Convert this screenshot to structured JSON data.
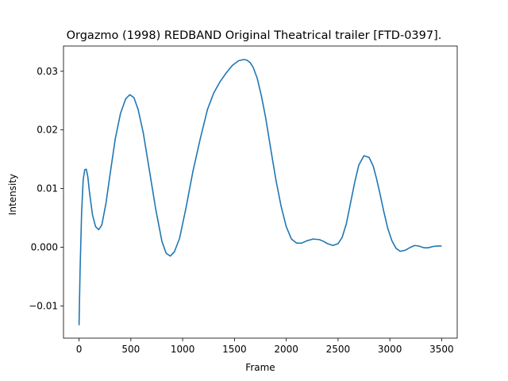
{
  "chart_data": {
    "type": "line",
    "title": "Orgazmo (1998) REDBAND Original Theatrical trailer [FTD-0397].",
    "xlabel": "Frame",
    "ylabel": "Intensity",
    "xlim": [
      -150,
      3650
    ],
    "ylim": [
      -0.0155,
      0.0343
    ],
    "xticks": [
      0,
      500,
      1000,
      1500,
      2000,
      2500,
      3000,
      3500
    ],
    "yticks": [
      -0.01,
      0.0,
      0.01,
      0.02,
      0.03
    ],
    "ytick_labels": [
      "−0.01",
      "0.000",
      "0.01",
      "0.02",
      "0.03"
    ],
    "xtick_labels": [
      "0",
      "500",
      "1000",
      "1500",
      "2000",
      "2500",
      "3000",
      "3500"
    ],
    "grid": false,
    "line_color": "#1f77b4",
    "series": [
      {
        "x": [
          0,
          10,
          25,
          40,
          55,
          70,
          85,
          100,
          130,
          160,
          190,
          220,
          260,
          300,
          350,
          400,
          450,
          490,
          530,
          570,
          620,
          680,
          740,
          800,
          840,
          880,
          920,
          970,
          1030,
          1100,
          1170,
          1240,
          1300,
          1360,
          1420,
          1480,
          1540,
          1590,
          1620,
          1650,
          1680,
          1720,
          1760,
          1800,
          1850,
          1900,
          1950,
          2000,
          2050,
          2100,
          2150,
          2200,
          2260,
          2320,
          2360,
          2400,
          2450,
          2500,
          2540,
          2580,
          2620,
          2660,
          2700,
          2750,
          2800,
          2840,
          2870,
          2900,
          2940,
          2980,
          3020,
          3060,
          3100,
          3150,
          3200,
          3240,
          3280,
          3330,
          3370,
          3410,
          3450,
          3500
        ],
        "values": [
          -0.0133,
          -0.004,
          0.006,
          0.0115,
          0.0132,
          0.0133,
          0.012,
          0.0095,
          0.0055,
          0.0035,
          0.003,
          0.0038,
          0.0075,
          0.0125,
          0.0185,
          0.0228,
          0.0253,
          0.026,
          0.0255,
          0.0235,
          0.0195,
          0.013,
          0.0065,
          0.001,
          -0.001,
          -0.0015,
          -0.0008,
          0.0015,
          0.0065,
          0.013,
          0.0185,
          0.0235,
          0.0263,
          0.0282,
          0.0297,
          0.031,
          0.0318,
          0.032,
          0.0319,
          0.0315,
          0.0307,
          0.0288,
          0.0258,
          0.0222,
          0.0168,
          0.0115,
          0.007,
          0.0035,
          0.0014,
          0.0007,
          0.0007,
          0.0011,
          0.0014,
          0.0013,
          0.001,
          0.0006,
          0.0003,
          0.0006,
          0.0017,
          0.004,
          0.0075,
          0.011,
          0.014,
          0.0156,
          0.0153,
          0.0138,
          0.0118,
          0.0095,
          0.0062,
          0.0032,
          0.0011,
          -0.0002,
          -0.0007,
          -0.0005,
          0.0,
          0.0003,
          0.0002,
          -0.0001,
          -0.0001,
          0.0001,
          0.0002,
          0.0002
        ]
      }
    ]
  }
}
